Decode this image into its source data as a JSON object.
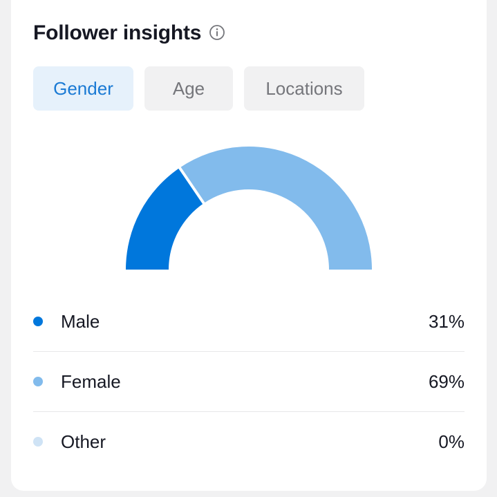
{
  "header": {
    "title": "Follower insights",
    "info_icon": "info-icon"
  },
  "tabs": [
    {
      "label": "Gender",
      "active": true
    },
    {
      "label": "Age",
      "active": false
    },
    {
      "label": "Locations",
      "active": false
    }
  ],
  "colors": {
    "male": "#0077dc",
    "female": "#82bbec",
    "other": "#cfe3f5",
    "accent": "#1a7ad4"
  },
  "chart_data": {
    "type": "pie",
    "shape": "half-donut",
    "categories": [
      "Male",
      "Female",
      "Other"
    ],
    "values": [
      31,
      69,
      0
    ],
    "unit": "%"
  },
  "legend": [
    {
      "label": "Male",
      "value": "31%"
    },
    {
      "label": "Female",
      "value": "69%"
    },
    {
      "label": "Other",
      "value": "0%"
    }
  ]
}
